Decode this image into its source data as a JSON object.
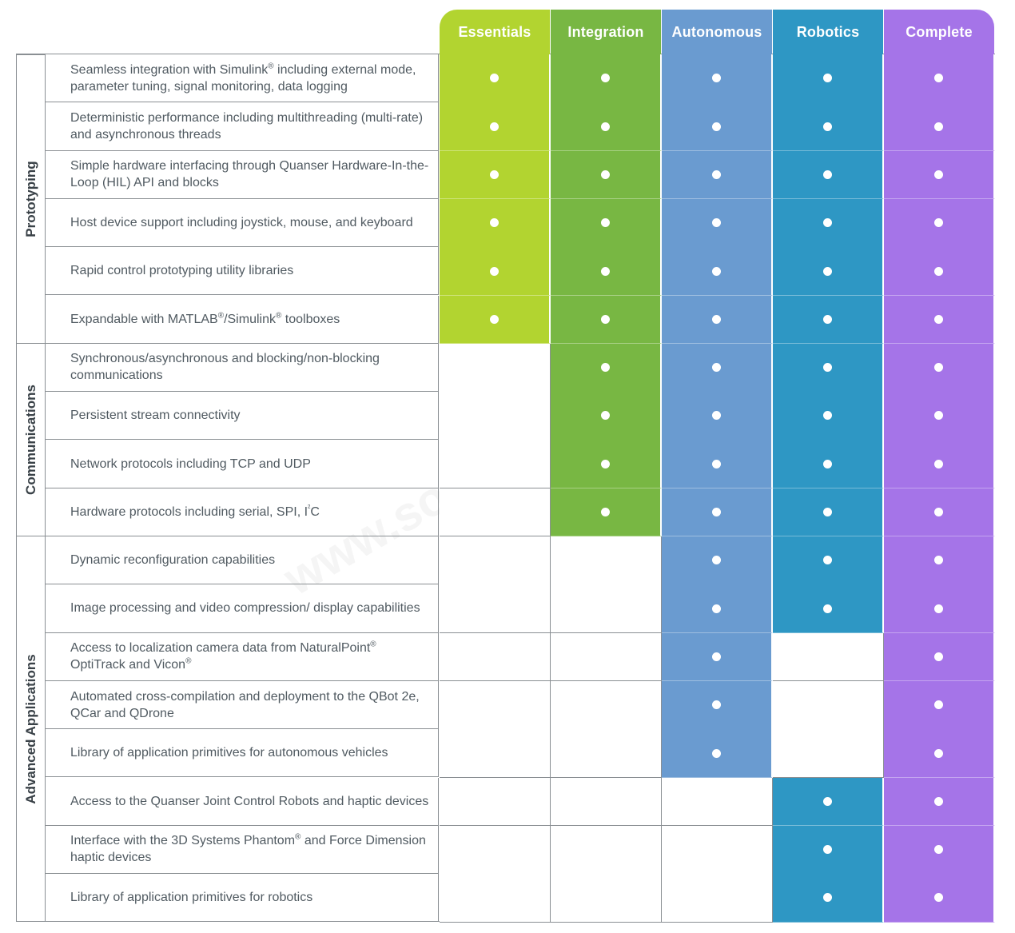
{
  "tiers": [
    {
      "name": "Essentials",
      "color": "#b2d430"
    },
    {
      "name": "Integration",
      "color": "#78b743"
    },
    {
      "name": "Autonomous",
      "color": "#6a9bd0"
    },
    {
      "name": "Robotics",
      "color": "#2e97c4"
    },
    {
      "name": "Complete",
      "color": "#a574e8"
    }
  ],
  "sections": [
    {
      "name": "Prototyping",
      "rows": [
        {
          "feature": "Seamless integration with Simulink® including external mode, parameter tuning, signal monitoring, data logging",
          "checks": [
            true,
            true,
            true,
            true,
            true
          ]
        },
        {
          "feature": "Deterministic performance including multithreading (multi-rate) and asynchronous threads",
          "checks": [
            true,
            true,
            true,
            true,
            true
          ]
        },
        {
          "feature": "Simple hardware interfacing through Quanser Hardware-In-the-Loop (HIL) API and blocks",
          "checks": [
            true,
            true,
            true,
            true,
            true
          ]
        },
        {
          "feature": "Host device support including joystick, mouse, and keyboard",
          "checks": [
            true,
            true,
            true,
            true,
            true
          ]
        },
        {
          "feature": "Rapid control prototyping utility libraries",
          "checks": [
            true,
            true,
            true,
            true,
            true
          ]
        },
        {
          "feature": "Expandable with MATLAB®/Simulink® toolboxes",
          "checks": [
            true,
            true,
            true,
            true,
            true
          ]
        }
      ]
    },
    {
      "name": "Communications",
      "rows": [
        {
          "feature": "Synchronous/asynchronous and blocking/non-blocking communications",
          "checks": [
            false,
            true,
            true,
            true,
            true
          ]
        },
        {
          "feature": "Persistent stream connectivity",
          "checks": [
            false,
            true,
            true,
            true,
            true
          ]
        },
        {
          "feature": "Network protocols including TCP and UDP",
          "checks": [
            false,
            true,
            true,
            true,
            true
          ]
        },
        {
          "feature": "Hardware protocols including serial, SPI, I²C",
          "checks": [
            false,
            true,
            true,
            true,
            true
          ]
        }
      ]
    },
    {
      "name": "Advanced  Applications",
      "rows": [
        {
          "feature": "Dynamic reconfiguration capabilities",
          "checks": [
            false,
            false,
            true,
            true,
            true
          ]
        },
        {
          "feature": "Image processing and video compression/ display capabilities",
          "checks": [
            false,
            false,
            true,
            true,
            true
          ]
        },
        {
          "feature": "Access to localization camera data from NaturalPoint® OptiTrack and Vicon®",
          "checks": [
            false,
            false,
            true,
            false,
            true
          ]
        },
        {
          "feature": "Automated cross-compilation and deployment to the QBot 2e, QCar and QDrone",
          "checks": [
            false,
            false,
            true,
            false,
            true
          ]
        },
        {
          "feature": "Library of application primitives for autonomous vehicles",
          "checks": [
            false,
            false,
            true,
            false,
            true
          ]
        },
        {
          "feature": "Access to the Quanser Joint Control Robots and haptic devices",
          "checks": [
            false,
            false,
            false,
            true,
            true
          ]
        },
        {
          "feature": "Interface with the 3D Systems Phantom® and Force Dimension haptic devices",
          "checks": [
            false,
            false,
            false,
            true,
            true
          ]
        },
        {
          "feature": "Library of application primitives for robotics",
          "checks": [
            false,
            false,
            false,
            true,
            true
          ]
        }
      ]
    }
  ],
  "watermark": "www.souvr.com"
}
